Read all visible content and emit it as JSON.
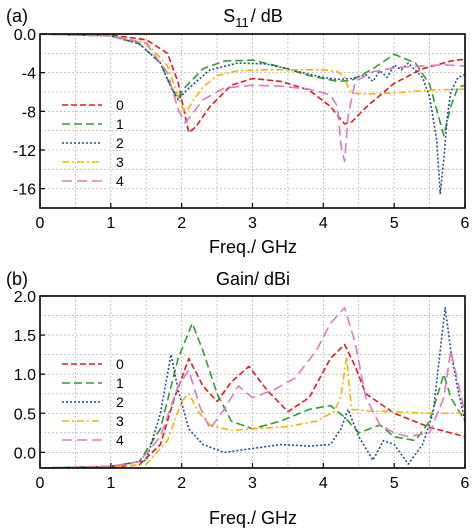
{
  "chart_data": [
    {
      "type": "line",
      "panel_label": "(a)",
      "title_main": "S",
      "title_sub": "11",
      "title_rest": "/ dB",
      "xlabel": "Freq./ GHz",
      "ylabel": "",
      "xlim": [
        0,
        6
      ],
      "ylim": [
        -18,
        0
      ],
      "xticks": [
        "0",
        "1",
        "2",
        "3",
        "4",
        "5",
        "6"
      ],
      "yticks": [
        "0.0",
        "-4",
        "-8",
        "-12",
        "-16"
      ],
      "ytick_values": [
        0,
        -4,
        -8,
        -12,
        -16
      ],
      "grid": true,
      "legend_position": "left",
      "series": [
        {
          "name": "0",
          "color": "#e41a1c",
          "dash": "6,3",
          "x": [
            0,
            1.0,
            1.5,
            1.8,
            1.95,
            2.05,
            2.1,
            2.2,
            2.4,
            2.7,
            3.0,
            3.4,
            3.8,
            4.1,
            4.3,
            4.4,
            4.6,
            5.0,
            5.4,
            5.8,
            6.0
          ],
          "y": [
            0,
            -0.1,
            -0.6,
            -2.0,
            -5.0,
            -8.5,
            -10.2,
            -9.6,
            -7.5,
            -5.3,
            -4.6,
            -4.9,
            -5.8,
            -7.5,
            -9.3,
            -9.1,
            -7.6,
            -5.1,
            -3.6,
            -2.8,
            -2.6
          ]
        },
        {
          "name": "1",
          "color": "#2ca02c",
          "dash": "8,4",
          "x": [
            0,
            1.0,
            1.4,
            1.7,
            1.85,
            1.95,
            2.05,
            2.3,
            2.6,
            3.0,
            3.4,
            3.8,
            4.2,
            4.4,
            4.7,
            5.0,
            5.3,
            5.5,
            5.7,
            5.8,
            5.9,
            6.0
          ],
          "y": [
            0,
            -0.2,
            -1.0,
            -3.0,
            -5.5,
            -6.6,
            -5.5,
            -3.6,
            -2.8,
            -2.7,
            -3.4,
            -4.3,
            -4.9,
            -4.8,
            -3.6,
            -2.1,
            -3.0,
            -5.2,
            -10.5,
            -7.5,
            -5.5,
            -5.3
          ]
        },
        {
          "name": "2",
          "color": "#1f4e9c",
          "dash": "2,2",
          "x": [
            0,
            1.0,
            1.4,
            1.7,
            1.85,
            1.95,
            2.1,
            2.4,
            2.8,
            3.2,
            3.6,
            4.0,
            4.2,
            4.4,
            4.6,
            4.7,
            4.8,
            4.9,
            5.0,
            5.1,
            5.2,
            5.4,
            5.5,
            5.6,
            5.65,
            5.7,
            5.75,
            5.8,
            5.9,
            6.0
          ],
          "y": [
            0,
            -0.2,
            -1.0,
            -3.0,
            -5.5,
            -6.8,
            -5.6,
            -3.7,
            -3.0,
            -3.1,
            -3.8,
            -4.5,
            -4.7,
            -4.6,
            -4.2,
            -4.9,
            -3.8,
            -4.5,
            -3.2,
            -3.7,
            -3.0,
            -4.5,
            -6.5,
            -11.0,
            -16.5,
            -13.0,
            -8.5,
            -6.0,
            -4.5,
            -4.2
          ]
        },
        {
          "name": "3",
          "color": "#ffb000",
          "dash": "7,3,2,3",
          "x": [
            0,
            1.0,
            1.5,
            1.8,
            1.95,
            2.05,
            2.15,
            2.3,
            2.5,
            2.8,
            3.2,
            3.6,
            4.0,
            4.2,
            4.3,
            4.35,
            4.4,
            4.6,
            5.0,
            5.5,
            6.0
          ],
          "y": [
            0,
            -0.2,
            -0.9,
            -3.3,
            -6.5,
            -8.3,
            -7.0,
            -5.5,
            -4.3,
            -3.8,
            -3.7,
            -3.7,
            -3.7,
            -3.9,
            -4.5,
            -5.5,
            -6.1,
            -6.2,
            -6.1,
            -5.8,
            -5.7
          ]
        },
        {
          "name": "4",
          "color": "#e377c2",
          "dash": "10,5",
          "x": [
            0,
            1.0,
            1.5,
            1.8,
            1.95,
            2.05,
            2.15,
            2.3,
            2.6,
            3.0,
            3.4,
            3.8,
            4.1,
            4.2,
            4.25,
            4.3,
            4.35,
            4.45,
            4.7,
            5.0,
            5.4,
            5.7,
            6.0
          ],
          "y": [
            0,
            -0.2,
            -1.0,
            -4.0,
            -7.8,
            -9.2,
            -8.3,
            -6.8,
            -5.6,
            -5.3,
            -5.4,
            -5.7,
            -6.3,
            -7.5,
            -11.5,
            -13.2,
            -8.5,
            -4.9,
            -3.9,
            -3.5,
            -3.3,
            -3.2,
            -3.3
          ]
        }
      ]
    },
    {
      "type": "line",
      "panel_label": "(b)",
      "title_main": "Gain/ dBi",
      "xlabel": "Freq./ GHz",
      "ylabel": "",
      "xlim": [
        0,
        6
      ],
      "ylim": [
        -0.2,
        2.0
      ],
      "xticks": [
        "0",
        "1",
        "2",
        "3",
        "4",
        "5",
        "6"
      ],
      "yticks": [
        "2.0",
        "1.5",
        "1.0",
        "0.5",
        "0.0"
      ],
      "ytick_values": [
        2.0,
        1.5,
        1.0,
        0.5,
        0.0
      ],
      "grid": true,
      "legend_position": "left",
      "series": [
        {
          "name": "0",
          "color": "#e41a1c",
          "dash": "6,3",
          "x": [
            0,
            1.0,
            1.4,
            1.7,
            1.9,
            2.1,
            2.3,
            2.5,
            2.7,
            2.95,
            3.2,
            3.5,
            3.8,
            4.1,
            4.3,
            4.45,
            4.6,
            5.0,
            5.5,
            6.0
          ],
          "y": [
            -0.2,
            -0.19,
            -0.16,
            0.1,
            0.7,
            1.2,
            0.85,
            0.65,
            0.9,
            1.1,
            0.8,
            0.52,
            0.7,
            1.2,
            1.38,
            1.1,
            0.75,
            0.5,
            0.32,
            0.2
          ]
        },
        {
          "name": "1",
          "color": "#2ca02c",
          "dash": "8,4",
          "x": [
            0,
            1.0,
            1.4,
            1.7,
            1.95,
            2.15,
            2.3,
            2.5,
            2.7,
            3.0,
            3.4,
            3.8,
            4.1,
            4.3,
            4.5,
            4.8,
            5.0,
            5.3,
            5.5,
            5.7,
            5.8,
            6.0
          ],
          "y": [
            -0.2,
            -0.18,
            -0.12,
            0.3,
            1.2,
            1.65,
            1.3,
            0.75,
            0.4,
            0.3,
            0.4,
            0.55,
            0.6,
            0.45,
            0.25,
            0.35,
            0.2,
            0.15,
            0.4,
            1.0,
            0.7,
            0.4
          ]
        },
        {
          "name": "2",
          "color": "#1f4e9c",
          "dash": "2,2",
          "x": [
            0,
            1.0,
            1.5,
            1.7,
            1.85,
            1.95,
            2.1,
            2.3,
            2.6,
            3.0,
            3.4,
            3.8,
            4.1,
            4.25,
            4.35,
            4.5,
            4.7,
            4.85,
            5.0,
            5.2,
            5.4,
            5.55,
            5.65,
            5.72,
            5.8,
            5.9,
            6.0
          ],
          "y": [
            -0.2,
            -0.18,
            -0.1,
            0.5,
            1.25,
            0.8,
            0.3,
            0.1,
            0.0,
            0.05,
            0.1,
            0.08,
            0.1,
            0.3,
            0.55,
            0.2,
            -0.1,
            0.15,
            0.1,
            -0.15,
            0.1,
            0.5,
            1.3,
            1.85,
            1.3,
            0.8,
            0.4
          ]
        },
        {
          "name": "3",
          "color": "#ffb000",
          "dash": "7,3,2,3",
          "x": [
            0,
            1.0,
            1.5,
            1.8,
            2.0,
            2.1,
            2.25,
            2.4,
            2.7,
            3.0,
            3.5,
            3.9,
            4.15,
            4.25,
            4.3,
            4.33,
            4.36,
            4.4,
            4.6,
            5.0,
            5.5,
            6.0
          ],
          "y": [
            -0.2,
            -0.19,
            -0.15,
            0.15,
            0.65,
            0.75,
            0.5,
            0.35,
            0.28,
            0.3,
            0.33,
            0.4,
            0.52,
            0.72,
            1.05,
            1.22,
            0.9,
            0.55,
            0.53,
            0.52,
            0.5,
            0.5
          ]
        },
        {
          "name": "4",
          "color": "#e377c2",
          "dash": "10,5",
          "x": [
            0,
            1.0,
            1.4,
            1.7,
            1.95,
            2.1,
            2.25,
            2.4,
            2.6,
            2.8,
            3.0,
            3.3,
            3.6,
            3.9,
            4.1,
            4.3,
            4.45,
            4.6,
            4.8,
            5.0,
            5.2,
            5.5,
            5.7,
            5.8,
            5.9,
            6.0
          ],
          "y": [
            -0.2,
            -0.18,
            -0.12,
            0.2,
            0.85,
            1.05,
            0.6,
            0.3,
            0.55,
            0.85,
            0.7,
            0.8,
            0.95,
            1.3,
            1.65,
            1.85,
            1.4,
            0.7,
            0.35,
            0.25,
            0.2,
            0.25,
            0.7,
            1.3,
            0.9,
            0.5
          ]
        }
      ]
    }
  ]
}
